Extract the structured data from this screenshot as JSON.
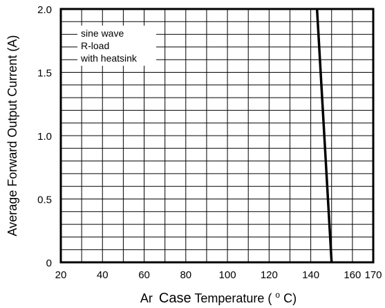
{
  "chart_data": {
    "type": "line",
    "title": "",
    "xlabel_prefix": "Ar",
    "xlabel_main": "Case",
    "xlabel_rest": " Temperature (",
    "xlabel_unit_sup": "o",
    "xlabel_unit": "C)",
    "ylabel": "Average Forward Output Current (A)",
    "xlim": [
      20,
      170
    ],
    "ylim": [
      0,
      2.0
    ],
    "x_ticks": [
      20,
      40,
      60,
      80,
      100,
      120,
      140,
      160,
      170
    ],
    "x_tick_labels": [
      "20",
      "40",
      "60",
      "80",
      "100",
      "120",
      "140",
      "160",
      "170"
    ],
    "y_ticks": [
      0,
      0.5,
      1.0,
      1.5,
      2.0
    ],
    "y_tick_labels": [
      "0",
      "0.5",
      "1.0",
      "1.5",
      "2.0"
    ],
    "grid": true,
    "grid_x_step": 10,
    "grid_y_step": 0.1,
    "annotations": [
      "sine wave",
      "R-load",
      "with heatsink"
    ],
    "series": [
      {
        "x": [
          143,
          150
        ],
        "y": [
          2.0,
          0
        ]
      }
    ]
  }
}
